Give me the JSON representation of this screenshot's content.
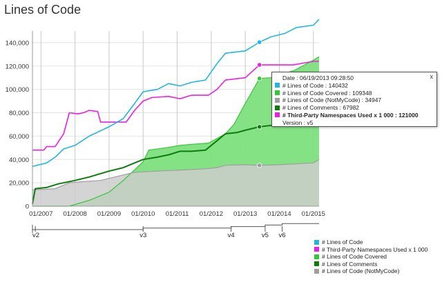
{
  "title": "Lines of Code",
  "chart_data": {
    "type": "area",
    "title": "Lines of Code",
    "xlabel": "",
    "ylabel": "",
    "xlim": [
      "2006-10",
      "2015-03"
    ],
    "ylim": [
      0,
      150000
    ],
    "y_ticks": [
      "0",
      "20,000",
      "40,000",
      "60,000",
      "80,000",
      "100,000",
      "120,000",
      "140,000"
    ],
    "x_ticks": [
      "01/2007",
      "01/2008",
      "01/2009",
      "01/2010",
      "01/2011",
      "01/2012",
      "01/2013",
      "01/2014",
      "01/2015"
    ],
    "grid": true,
    "legend_position": "bottom-right",
    "versions": [
      "v2",
      "v3",
      "v4",
      "v5",
      "v6"
    ],
    "version_dates": [
      "2006-11",
      "2010-01",
      "2012-08",
      "2013-08",
      "2014-02"
    ],
    "series": [
      {
        "name": "# Lines of Code",
        "color": "#1fb6e6",
        "style": "line",
        "points": [
          [
            "2006-10",
            34000
          ],
          [
            "2007-03",
            37000
          ],
          [
            "2007-06",
            42000
          ],
          [
            "2007-09",
            49000
          ],
          [
            "2008-01",
            52000
          ],
          [
            "2008-06",
            60000
          ],
          [
            "2009-01",
            68000
          ],
          [
            "2009-06",
            75000
          ],
          [
            "2009-10",
            88000
          ],
          [
            "2010-01",
            98000
          ],
          [
            "2010-06",
            100000
          ],
          [
            "2010-10",
            105000
          ],
          [
            "2011-02",
            103000
          ],
          [
            "2011-06",
            106000
          ],
          [
            "2011-11",
            108000
          ],
          [
            "2012-03",
            122000
          ],
          [
            "2012-06",
            131000
          ],
          [
            "2013-01",
            133000
          ],
          [
            "2013-06",
            140432
          ],
          [
            "2013-10",
            145000
          ],
          [
            "2014-03",
            148000
          ],
          [
            "2014-07",
            153000
          ],
          [
            "2015-01",
            155000
          ],
          [
            "2015-03",
            160000
          ]
        ]
      },
      {
        "name": "# Third-Party Namespaces Used x 1 000",
        "color": "#ee1ee8",
        "style": "line",
        "points": [
          [
            "2006-10",
            48000
          ],
          [
            "2007-02",
            48000
          ],
          [
            "2007-03",
            51000
          ],
          [
            "2007-06",
            51000
          ],
          [
            "2007-09",
            62000
          ],
          [
            "2007-11",
            80000
          ],
          [
            "2008-02",
            79000
          ],
          [
            "2008-04",
            80000
          ],
          [
            "2008-06",
            82000
          ],
          [
            "2008-09",
            81000
          ],
          [
            "2008-10",
            72000
          ],
          [
            "2009-03",
            72000
          ],
          [
            "2009-07",
            72000
          ],
          [
            "2009-10",
            82000
          ],
          [
            "2010-01",
            90000
          ],
          [
            "2010-04",
            93000
          ],
          [
            "2010-10",
            94000
          ],
          [
            "2011-02",
            92000
          ],
          [
            "2011-06",
            95000
          ],
          [
            "2011-12",
            95000
          ],
          [
            "2012-03",
            100000
          ],
          [
            "2012-06",
            108000
          ],
          [
            "2013-01",
            110000
          ],
          [
            "2013-06",
            121000
          ],
          [
            "2013-10",
            121000
          ],
          [
            "2014-06",
            121000
          ],
          [
            "2015-01",
            124000
          ],
          [
            "2015-03",
            124000
          ]
        ]
      },
      {
        "name": "# Lines of Code Covered",
        "color": "#34c734",
        "fill": "#7de07d",
        "style": "area",
        "points": [
          [
            "2006-10",
            0
          ],
          [
            "2007-11",
            0
          ],
          [
            "2008-06",
            5000
          ],
          [
            "2009-01",
            12000
          ],
          [
            "2009-06",
            22000
          ],
          [
            "2010-01",
            38000
          ],
          [
            "2010-03",
            48000
          ],
          [
            "2010-09",
            50000
          ],
          [
            "2011-02",
            52000
          ],
          [
            "2011-06",
            53000
          ],
          [
            "2011-12",
            54000
          ],
          [
            "2012-06",
            62000
          ],
          [
            "2012-09",
            70000
          ],
          [
            "2013-01",
            88000
          ],
          [
            "2013-06",
            109348
          ],
          [
            "2013-10",
            110000
          ],
          [
            "2014-06",
            116000
          ],
          [
            "2015-01",
            125000
          ],
          [
            "2015-03",
            128000
          ]
        ]
      },
      {
        "name": "# Lines of Comments",
        "color": "#0c7c0c",
        "style": "line",
        "points": [
          [
            "2006-10",
            2000
          ],
          [
            "2006-11",
            15000
          ],
          [
            "2007-03",
            16000
          ],
          [
            "2007-07",
            19000
          ],
          [
            "2008-01",
            22000
          ],
          [
            "2008-06",
            25000
          ],
          [
            "2009-01",
            30000
          ],
          [
            "2009-06",
            33000
          ],
          [
            "2009-10",
            37000
          ],
          [
            "2010-01",
            40000
          ],
          [
            "2010-06",
            42000
          ],
          [
            "2010-10",
            44000
          ],
          [
            "2011-02",
            47000
          ],
          [
            "2011-06",
            47000
          ],
          [
            "2011-11",
            48000
          ],
          [
            "2012-03",
            56000
          ],
          [
            "2012-06",
            62000
          ],
          [
            "2012-10",
            63000
          ],
          [
            "2013-01",
            65000
          ],
          [
            "2013-06",
            67982
          ],
          [
            "2014-01",
            70000
          ],
          [
            "2014-06",
            73000
          ],
          [
            "2015-01",
            80000
          ],
          [
            "2015-03",
            82000
          ]
        ]
      },
      {
        "name": "# Lines of Code (NotMyCode)",
        "color": "#9e9e9e",
        "fill": "#cdcdcd",
        "style": "area",
        "points": [
          [
            "2006-10",
            14000
          ],
          [
            "2007-03",
            14500
          ],
          [
            "2007-06",
            15000
          ],
          [
            "2007-11",
            20000
          ],
          [
            "2008-04",
            21000
          ],
          [
            "2008-10",
            22000
          ],
          [
            "2009-03",
            25000
          ],
          [
            "2009-10",
            29000
          ],
          [
            "2010-06",
            30000
          ],
          [
            "2011-03",
            31000
          ],
          [
            "2011-11",
            32000
          ],
          [
            "2012-03",
            33000
          ],
          [
            "2012-06",
            35000
          ],
          [
            "2013-01",
            35500
          ],
          [
            "2013-06",
            34947
          ],
          [
            "2014-01",
            35500
          ],
          [
            "2015-01",
            37000
          ],
          [
            "2015-03",
            40000
          ]
        ]
      }
    ],
    "highlight_date": "2013-06"
  },
  "tooltip": {
    "close_label": "x",
    "date_line": "Date : 06/19/2013 09:28:50",
    "rows": [
      {
        "text": "# Lines of Code : 140432",
        "color": "#1fb6e6",
        "bold": false
      },
      {
        "text": "# Lines of Code Covered : 109348",
        "color": "#34c734",
        "bold": false
      },
      {
        "text": "# Lines of Code (NotMyCode) : 34947",
        "color": "#9e9e9e",
        "bold": false
      },
      {
        "text": "# Lines of Comments : 67982",
        "color": "#0c7c0c",
        "bold": false
      },
      {
        "text": "# Third-Party Namespaces Used x 1 000 : 121000",
        "color": "#ee1ee8",
        "bold": true
      }
    ],
    "version_line": "Version : v5"
  },
  "legend": [
    {
      "label": "# Lines of Code",
      "color": "#1fb6e6"
    },
    {
      "label": "# Third-Party Namespaces Used x 1 000",
      "color": "#ee1ee8"
    },
    {
      "label": "# Lines of Code Covered",
      "color": "#34c734"
    },
    {
      "label": "# Lines of Comments",
      "color": "#0c7c0c"
    },
    {
      "label": "# Lines of Code (NotMyCode)",
      "color": "#9e9e9e"
    }
  ]
}
